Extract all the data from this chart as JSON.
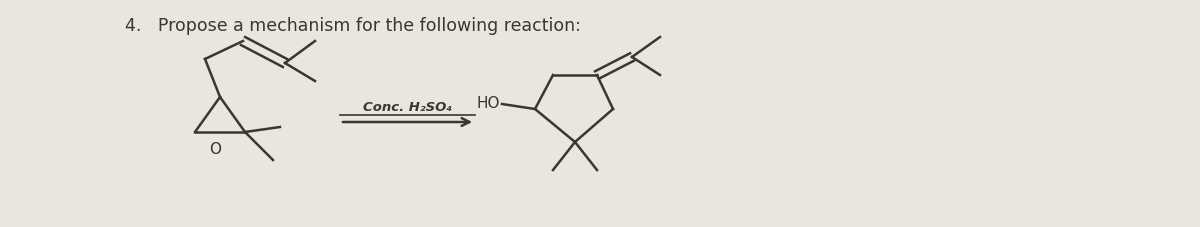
{
  "title": "4.   Propose a mechanism for the following reaction:",
  "reagent_line": "Conc. H₂SO₄",
  "ho_label": "HO",
  "o_label": "O",
  "bg_color": "#e8e6df",
  "text_color": "#3a3632",
  "title_fontsize": 12.5,
  "fig_width": 12.0,
  "fig_height": 2.27,
  "dpi": 100
}
